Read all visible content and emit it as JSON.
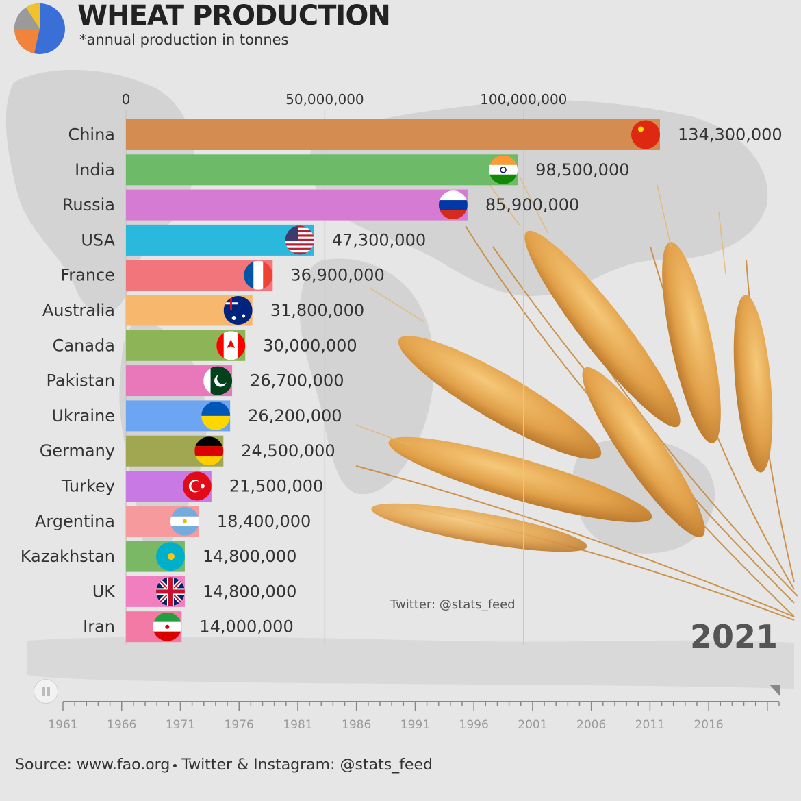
{
  "header": {
    "title": "WHEAT PRODUCTION",
    "subtitle": "*annual production in tonnes"
  },
  "year_label": "2021",
  "watermark": "Twitter: @stats_feed",
  "footer": {
    "source": "Source: www.fao.org",
    "social": "Twitter & Instagram: @stats_feed"
  },
  "timeline": {
    "ticks": [
      "1961",
      "1966",
      "1971",
      "1976",
      "1981",
      "1986",
      "1991",
      "1996",
      "2001",
      "2006",
      "2011",
      "2016"
    ],
    "current": "2021",
    "state": "paused"
  },
  "chart_data": {
    "type": "bar",
    "orientation": "horizontal",
    "title": "WHEAT PRODUCTION",
    "subtitle": "*annual production in tonnes",
    "xlim": [
      0,
      134300000
    ],
    "x_ticks": [
      0,
      50000000,
      100000000
    ],
    "x_tick_labels": [
      "0",
      "50,000,000",
      "100,000,000"
    ],
    "categories": [
      "China",
      "India",
      "Russia",
      "USA",
      "France",
      "Australia",
      "Canada",
      "Pakistan",
      "Ukraine",
      "Germany",
      "Turkey",
      "Argentina",
      "Kazakhstan",
      "UK",
      "Iran"
    ],
    "values": [
      134300000,
      98500000,
      85900000,
      47300000,
      36900000,
      31800000,
      30000000,
      26700000,
      26200000,
      24500000,
      21500000,
      18400000,
      14800000,
      14800000,
      14000000
    ],
    "value_labels": [
      "134,300,000",
      "98,500,000",
      "85,900,000",
      "47,300,000",
      "36,900,000",
      "31,800,000",
      "30,000,000",
      "26,700,000",
      "26,200,000",
      "24,500,000",
      "21,500,000",
      "18,400,000",
      "14,800,000",
      "14,800,000",
      "14,000,000"
    ],
    "colors": [
      "#d58c50",
      "#6dbb69",
      "#d67bd3",
      "#2ab8dc",
      "#f2757b",
      "#f7b86e",
      "#8db457",
      "#e878ba",
      "#6ca6f2",
      "#a1a651",
      "#c979e3",
      "#f79a9e",
      "#7ab865",
      "#f17fc0",
      "#f47aa6"
    ],
    "flags": [
      "china-flag",
      "india-flag",
      "russia-flag",
      "usa-flag",
      "france-flag",
      "australia-flag",
      "canada-flag",
      "pakistan-flag",
      "ukraine-flag",
      "germany-flag",
      "turkey-flag",
      "argentina-flag",
      "kazakhstan-flag",
      "uk-flag",
      "iran-flag"
    ],
    "grid": true,
    "legend": "none"
  }
}
